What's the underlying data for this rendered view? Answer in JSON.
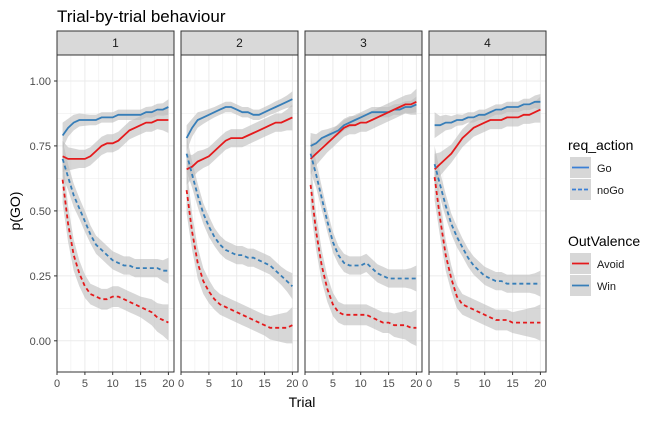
{
  "chart_data": {
    "type": "line",
    "title": "Trial-by-trial behaviour",
    "xlabel": "Trial",
    "ylabel": "p(GO)",
    "facets": [
      "1",
      "2",
      "3",
      "4"
    ],
    "xlim": [
      0,
      21
    ],
    "ylim": [
      -0.12,
      1.1
    ],
    "xticks": [
      0,
      5,
      10,
      15,
      20
    ],
    "xtick_labels": [
      "0",
      "5",
      "10",
      "15",
      "20"
    ],
    "yticks": [
      0.0,
      0.25,
      0.5,
      0.75,
      1.0
    ],
    "ytick_labels": [
      "0.00",
      "0.25",
      "0.50",
      "0.75",
      "1.00"
    ],
    "grid": true,
    "x": [
      1,
      2,
      3,
      4,
      5,
      6,
      7,
      8,
      9,
      10,
      11,
      12,
      13,
      14,
      15,
      16,
      17,
      18,
      19,
      20
    ],
    "series": [
      {
        "facet": "1",
        "req_action": "Go",
        "OutValence": "Win",
        "values": [
          0.79,
          0.82,
          0.84,
          0.85,
          0.85,
          0.85,
          0.85,
          0.86,
          0.86,
          0.86,
          0.87,
          0.87,
          0.87,
          0.87,
          0.87,
          0.88,
          0.88,
          0.89,
          0.89,
          0.9
        ],
        "band": [
          0.05,
          0.035,
          0.03,
          0.025,
          0.022,
          0.02,
          0.02,
          0.02,
          0.02,
          0.02,
          0.02,
          0.02,
          0.02,
          0.02,
          0.02,
          0.02,
          0.022,
          0.022,
          0.024,
          0.03
        ]
      },
      {
        "facet": "1",
        "req_action": "Go",
        "OutValence": "Avoid",
        "values": [
          0.71,
          0.7,
          0.7,
          0.7,
          0.7,
          0.71,
          0.73,
          0.75,
          0.76,
          0.76,
          0.77,
          0.79,
          0.81,
          0.82,
          0.83,
          0.84,
          0.84,
          0.85,
          0.85,
          0.85
        ],
        "band": [
          0.06,
          0.045,
          0.04,
          0.035,
          0.035,
          0.035,
          0.035,
          0.035,
          0.035,
          0.035,
          0.035,
          0.035,
          0.035,
          0.035,
          0.035,
          0.035,
          0.035,
          0.035,
          0.04,
          0.05
        ]
      },
      {
        "facet": "1",
        "req_action": "noGo",
        "OutValence": "Win",
        "values": [
          0.7,
          0.63,
          0.56,
          0.51,
          0.46,
          0.41,
          0.37,
          0.35,
          0.33,
          0.31,
          0.3,
          0.29,
          0.29,
          0.28,
          0.28,
          0.28,
          0.28,
          0.28,
          0.27,
          0.27
        ],
        "band": [
          0.07,
          0.05,
          0.045,
          0.04,
          0.04,
          0.035,
          0.035,
          0.035,
          0.035,
          0.035,
          0.035,
          0.035,
          0.035,
          0.035,
          0.035,
          0.035,
          0.035,
          0.035,
          0.04,
          0.05
        ]
      },
      {
        "facet": "1",
        "req_action": "noGo",
        "OutValence": "Avoid",
        "values": [
          0.62,
          0.45,
          0.33,
          0.26,
          0.21,
          0.18,
          0.17,
          0.16,
          0.16,
          0.17,
          0.17,
          0.16,
          0.15,
          0.14,
          0.13,
          0.12,
          0.11,
          0.09,
          0.08,
          0.07
        ],
        "band": [
          0.09,
          0.07,
          0.06,
          0.05,
          0.045,
          0.04,
          0.04,
          0.04,
          0.04,
          0.04,
          0.04,
          0.04,
          0.04,
          0.04,
          0.04,
          0.045,
          0.05,
          0.055,
          0.06,
          0.07
        ]
      },
      {
        "facet": "2",
        "req_action": "Go",
        "OutValence": "Win",
        "values": [
          0.78,
          0.82,
          0.85,
          0.86,
          0.87,
          0.88,
          0.89,
          0.9,
          0.9,
          0.89,
          0.88,
          0.88,
          0.87,
          0.87,
          0.88,
          0.89,
          0.9,
          0.91,
          0.92,
          0.93
        ],
        "band": [
          0.05,
          0.035,
          0.03,
          0.025,
          0.022,
          0.02,
          0.02,
          0.02,
          0.02,
          0.02,
          0.02,
          0.02,
          0.02,
          0.02,
          0.02,
          0.02,
          0.022,
          0.022,
          0.024,
          0.03
        ]
      },
      {
        "facet": "2",
        "req_action": "Go",
        "OutValence": "Avoid",
        "values": [
          0.66,
          0.67,
          0.69,
          0.7,
          0.71,
          0.73,
          0.75,
          0.77,
          0.78,
          0.78,
          0.78,
          0.79,
          0.8,
          0.81,
          0.82,
          0.83,
          0.84,
          0.84,
          0.85,
          0.86
        ],
        "band": [
          0.06,
          0.045,
          0.04,
          0.035,
          0.035,
          0.035,
          0.035,
          0.035,
          0.035,
          0.035,
          0.035,
          0.035,
          0.035,
          0.035,
          0.035,
          0.035,
          0.035,
          0.035,
          0.04,
          0.05
        ]
      },
      {
        "facet": "2",
        "req_action": "noGo",
        "OutValence": "Win",
        "values": [
          0.72,
          0.64,
          0.56,
          0.49,
          0.44,
          0.4,
          0.37,
          0.35,
          0.34,
          0.33,
          0.33,
          0.32,
          0.32,
          0.31,
          0.3,
          0.29,
          0.27,
          0.25,
          0.23,
          0.21
        ],
        "band": [
          0.07,
          0.05,
          0.045,
          0.04,
          0.04,
          0.035,
          0.035,
          0.035,
          0.035,
          0.035,
          0.035,
          0.035,
          0.035,
          0.035,
          0.035,
          0.035,
          0.035,
          0.035,
          0.04,
          0.05
        ]
      },
      {
        "facet": "2",
        "req_action": "noGo",
        "OutValence": "Avoid",
        "values": [
          0.58,
          0.42,
          0.3,
          0.23,
          0.19,
          0.16,
          0.14,
          0.13,
          0.12,
          0.11,
          0.1,
          0.09,
          0.08,
          0.07,
          0.06,
          0.05,
          0.05,
          0.05,
          0.05,
          0.06
        ],
        "band": [
          0.09,
          0.07,
          0.06,
          0.05,
          0.045,
          0.04,
          0.04,
          0.04,
          0.04,
          0.04,
          0.04,
          0.04,
          0.04,
          0.04,
          0.04,
          0.045,
          0.05,
          0.055,
          0.06,
          0.07
        ]
      },
      {
        "facet": "3",
        "req_action": "Go",
        "OutValence": "Win",
        "values": [
          0.75,
          0.76,
          0.78,
          0.79,
          0.8,
          0.81,
          0.83,
          0.84,
          0.85,
          0.86,
          0.87,
          0.88,
          0.88,
          0.88,
          0.88,
          0.89,
          0.89,
          0.9,
          0.9,
          0.91
        ],
        "band": [
          0.05,
          0.035,
          0.03,
          0.025,
          0.022,
          0.02,
          0.02,
          0.02,
          0.02,
          0.02,
          0.02,
          0.02,
          0.02,
          0.02,
          0.02,
          0.02,
          0.022,
          0.022,
          0.024,
          0.03
        ]
      },
      {
        "facet": "3",
        "req_action": "Go",
        "OutValence": "Avoid",
        "values": [
          0.7,
          0.72,
          0.74,
          0.76,
          0.78,
          0.8,
          0.82,
          0.83,
          0.83,
          0.84,
          0.84,
          0.85,
          0.86,
          0.87,
          0.88,
          0.89,
          0.9,
          0.91,
          0.91,
          0.92
        ],
        "band": [
          0.06,
          0.045,
          0.04,
          0.035,
          0.035,
          0.035,
          0.035,
          0.035,
          0.035,
          0.035,
          0.035,
          0.035,
          0.035,
          0.035,
          0.035,
          0.035,
          0.035,
          0.035,
          0.04,
          0.05
        ]
      },
      {
        "facet": "3",
        "req_action": "noGo",
        "OutValence": "Win",
        "values": [
          0.72,
          0.64,
          0.55,
          0.46,
          0.38,
          0.33,
          0.3,
          0.29,
          0.29,
          0.29,
          0.3,
          0.28,
          0.26,
          0.25,
          0.24,
          0.24,
          0.24,
          0.24,
          0.24,
          0.24
        ],
        "band": [
          0.07,
          0.05,
          0.045,
          0.04,
          0.04,
          0.035,
          0.035,
          0.035,
          0.035,
          0.035,
          0.035,
          0.035,
          0.035,
          0.035,
          0.035,
          0.035,
          0.035,
          0.035,
          0.04,
          0.05
        ]
      },
      {
        "facet": "3",
        "req_action": "noGo",
        "OutValence": "Avoid",
        "values": [
          0.6,
          0.42,
          0.29,
          0.2,
          0.14,
          0.11,
          0.1,
          0.1,
          0.1,
          0.1,
          0.1,
          0.09,
          0.08,
          0.07,
          0.07,
          0.06,
          0.06,
          0.06,
          0.05,
          0.05
        ],
        "band": [
          0.09,
          0.07,
          0.06,
          0.05,
          0.045,
          0.04,
          0.04,
          0.04,
          0.04,
          0.04,
          0.04,
          0.04,
          0.04,
          0.04,
          0.04,
          0.045,
          0.05,
          0.055,
          0.06,
          0.07
        ]
      },
      {
        "facet": "4",
        "req_action": "Go",
        "OutValence": "Win",
        "values": [
          0.83,
          0.83,
          0.84,
          0.84,
          0.85,
          0.85,
          0.86,
          0.86,
          0.87,
          0.87,
          0.88,
          0.89,
          0.89,
          0.9,
          0.9,
          0.9,
          0.91,
          0.91,
          0.92,
          0.92
        ],
        "band": [
          0.05,
          0.035,
          0.03,
          0.025,
          0.022,
          0.02,
          0.02,
          0.02,
          0.02,
          0.02,
          0.02,
          0.02,
          0.02,
          0.02,
          0.02,
          0.02,
          0.022,
          0.022,
          0.024,
          0.03
        ]
      },
      {
        "facet": "4",
        "req_action": "Go",
        "OutValence": "Avoid",
        "values": [
          0.66,
          0.68,
          0.7,
          0.72,
          0.75,
          0.78,
          0.8,
          0.82,
          0.83,
          0.84,
          0.85,
          0.85,
          0.85,
          0.86,
          0.86,
          0.86,
          0.87,
          0.87,
          0.88,
          0.89
        ],
        "band": [
          0.06,
          0.045,
          0.04,
          0.035,
          0.035,
          0.035,
          0.035,
          0.035,
          0.035,
          0.035,
          0.035,
          0.035,
          0.035,
          0.035,
          0.035,
          0.035,
          0.035,
          0.035,
          0.04,
          0.05
        ]
      },
      {
        "facet": "4",
        "req_action": "noGo",
        "OutValence": "Win",
        "values": [
          0.68,
          0.6,
          0.52,
          0.45,
          0.4,
          0.36,
          0.32,
          0.29,
          0.27,
          0.25,
          0.24,
          0.23,
          0.23,
          0.22,
          0.22,
          0.22,
          0.22,
          0.22,
          0.22,
          0.22
        ],
        "band": [
          0.07,
          0.05,
          0.045,
          0.04,
          0.04,
          0.035,
          0.035,
          0.035,
          0.035,
          0.035,
          0.035,
          0.035,
          0.035,
          0.035,
          0.035,
          0.035,
          0.035,
          0.035,
          0.04,
          0.05
        ]
      },
      {
        "facet": "4",
        "req_action": "noGo",
        "OutValence": "Avoid",
        "values": [
          0.63,
          0.47,
          0.33,
          0.24,
          0.17,
          0.14,
          0.13,
          0.12,
          0.11,
          0.1,
          0.09,
          0.08,
          0.08,
          0.08,
          0.07,
          0.07,
          0.07,
          0.07,
          0.07,
          0.07
        ],
        "band": [
          0.09,
          0.07,
          0.06,
          0.05,
          0.045,
          0.04,
          0.04,
          0.04,
          0.04,
          0.04,
          0.04,
          0.04,
          0.04,
          0.04,
          0.04,
          0.045,
          0.05,
          0.055,
          0.06,
          0.07
        ]
      }
    ],
    "legends": [
      {
        "title": "req_action",
        "position": "right",
        "entries": [
          {
            "label": "Go",
            "linetype": "solid"
          },
          {
            "label": "noGo",
            "linetype": "dashed"
          }
        ]
      },
      {
        "title": "OutValence",
        "position": "right",
        "entries": [
          {
            "label": "Avoid",
            "color": "#e41a1c"
          },
          {
            "label": "Win",
            "color": "#377eb8"
          }
        ]
      }
    ],
    "colors": {
      "Avoid": "#e41a1c",
      "Win": "#377eb8",
      "legend_line": "#3a7fd6",
      "band": "#bdbdbd",
      "strip_bg": "#d9d9d9",
      "grid": "#ebebeb",
      "panel_border": "#333333",
      "text": "#4d4d4d",
      "title": "#000000"
    }
  }
}
